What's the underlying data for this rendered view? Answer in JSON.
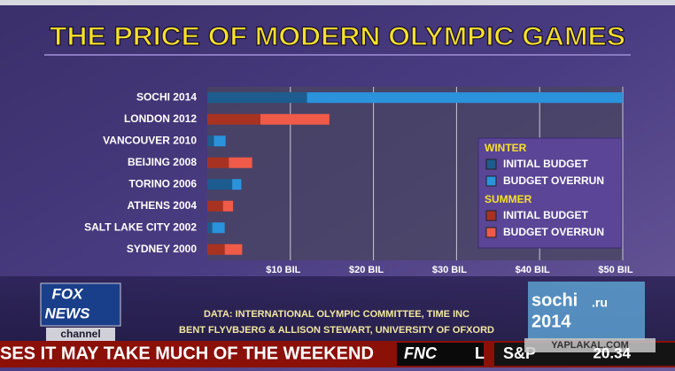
{
  "chart_data": {
    "type": "stacked-bar-horizontal",
    "title": "THE PRICE OF MODERN OLYMPIC GAMES",
    "categories": [
      "SOCHI 2014",
      "LONDON 2012",
      "VANCOUVER 2010",
      "BEIJING 2008",
      "TORINO 2006",
      "ATHENS 2004",
      "SALT LAKE CITY 2002",
      "SYDNEY 2000"
    ],
    "series": [
      {
        "group": "WINTER",
        "name": "INITIAL BUDGET",
        "color": "#1d5c8e",
        "values": [
          12,
          null,
          0.8,
          null,
          3.0,
          null,
          0.6,
          null
        ]
      },
      {
        "group": "WINTER",
        "name": "BUDGET OVERRUN",
        "color": "#2a93dc",
        "values": [
          38,
          null,
          1.4,
          null,
          1.1,
          null,
          1.5,
          null
        ]
      },
      {
        "group": "SUMMER",
        "name": "INITIAL BUDGET",
        "color": "#a83222",
        "values": [
          null,
          6.4,
          null,
          2.6,
          null,
          1.9,
          null,
          2.1
        ]
      },
      {
        "group": "SUMMER",
        "name": "BUDGET OVERRUN",
        "color": "#f05a48",
        "values": [
          null,
          8.3,
          null,
          2.8,
          null,
          1.2,
          null,
          2.1
        ]
      }
    ],
    "xlim": [
      0,
      50
    ],
    "xticks": [
      {
        "value": 10,
        "label": "$10 BIL"
      },
      {
        "value": 20,
        "label": "$20 BIL"
      },
      {
        "value": 30,
        "label": "$30 BIL"
      },
      {
        "value": 40,
        "label": "$40 BIL"
      },
      {
        "value": 50,
        "label": "$50 BIL"
      }
    ],
    "grid": true,
    "legend": "right",
    "source": [
      "DATA: INTERNATIONAL OLYMPIC COMMITTEE, TIME INC",
      "BENT FLYVBJERG & ALLISON STEWART, UNIVERSITY OF OFXORD"
    ]
  },
  "screen": {
    "logo": [
      "FOX",
      "NEWS",
      "channel"
    ],
    "ticker": "SES IT MAY TAKE MUCH OF THE WEEKEND",
    "ticker_tag": "FNC",
    "ticker_next": "L",
    "market": "S&P",
    "time": "20.34",
    "sochi_logo": [
      "sochi",
      "2014",
      ".ru"
    ],
    "watermark": "YAPLAKAL.COM"
  }
}
